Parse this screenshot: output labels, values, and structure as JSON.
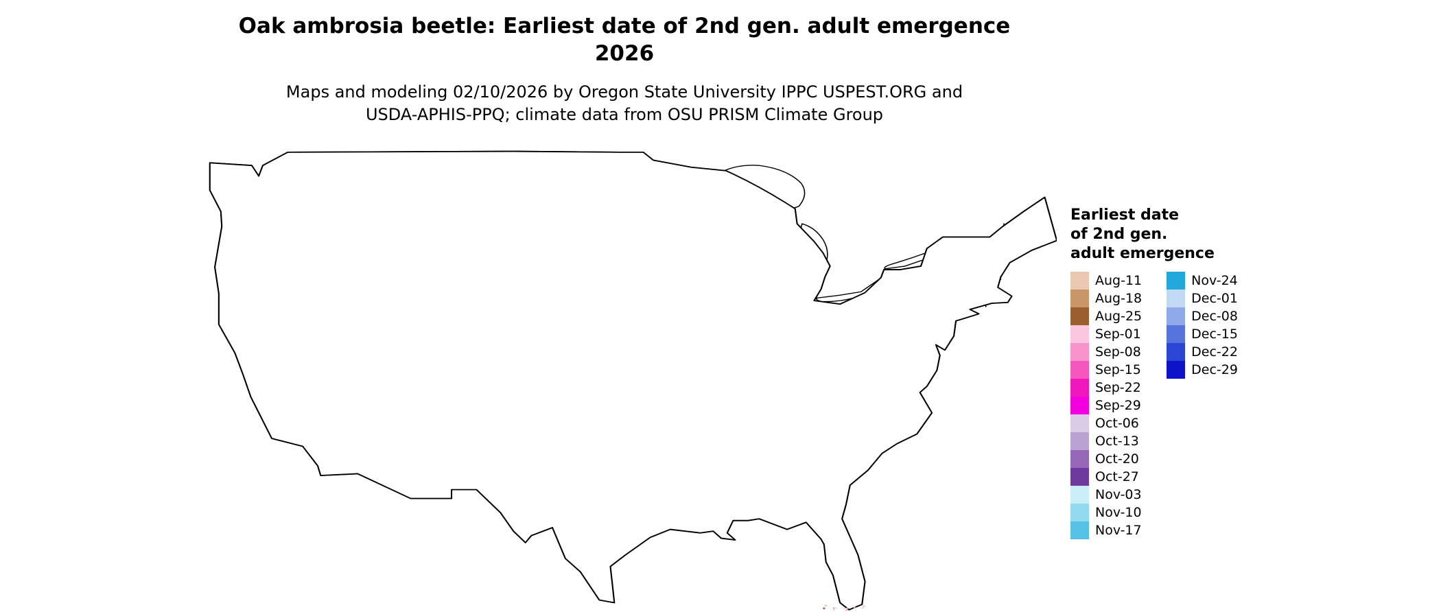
{
  "header": {
    "title_line1": "Oak ambrosia beetle: Earliest date of 2nd gen. adult emergence",
    "title_line2": "2026",
    "subtitle_line1": "Maps and modeling 02/10/2026 by Oregon State University IPPC USPEST.ORG and",
    "subtitle_line2": "USDA-APHIS-PPQ; climate data from OSU PRISM Climate Group"
  },
  "map": {
    "name": "Contiguous United States emergence map",
    "land_color": "#ffffff",
    "border_color": "#000000"
  },
  "legend": {
    "title_lines": [
      "Earliest date",
      "of 2nd gen.",
      "adult emergence"
    ],
    "columns": [
      {
        "entries": [
          {
            "label": "Aug-11",
            "color": "#EAC8B2"
          },
          {
            "label": "Aug-18",
            "color": "#C79768"
          },
          {
            "label": "Aug-25",
            "color": "#9B5F2F"
          },
          {
            "label": "Sep-01",
            "color": "#FBC7DE"
          },
          {
            "label": "Sep-08",
            "color": "#F893CC"
          },
          {
            "label": "Sep-15",
            "color": "#F558BC"
          },
          {
            "label": "Sep-22",
            "color": "#EF18BC"
          },
          {
            "label": "Sep-29",
            "color": "#F200E0"
          },
          {
            "label": "Oct-06",
            "color": "#DACCE4"
          },
          {
            "label": "Oct-13",
            "color": "#B9A1D1"
          },
          {
            "label": "Oct-20",
            "color": "#9569B8"
          },
          {
            "label": "Oct-27",
            "color": "#6F3A9D"
          },
          {
            "label": "Nov-03",
            "color": "#C9EEF8"
          },
          {
            "label": "Nov-10",
            "color": "#93DAEF"
          },
          {
            "label": "Nov-17",
            "color": "#55C1E4"
          }
        ]
      },
      {
        "entries": [
          {
            "label": "Nov-24",
            "color": "#21A9DC"
          },
          {
            "label": "Dec-01",
            "color": "#C2DAF3"
          },
          {
            "label": "Dec-08",
            "color": "#8FA9E9"
          },
          {
            "label": "Dec-15",
            "color": "#5673DE"
          },
          {
            "label": "Dec-22",
            "color": "#2B46D5"
          },
          {
            "label": "Dec-29",
            "color": "#0D13C8"
          }
        ]
      }
    ]
  }
}
